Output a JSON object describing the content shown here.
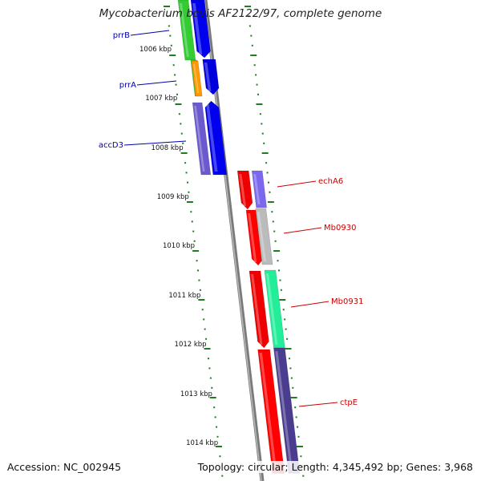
{
  "title": "Mycobacterium bovis AF2122/97, complete genome",
  "footer": {
    "accession": "Accession: NC_002945",
    "summary": "Topology: circular; Length: 4,345,492 bp; Genes: 3,968"
  },
  "ruler": {
    "ticks": [
      "1006 kbp",
      "1007 kbp",
      "1008 kbp",
      "1009 kbp",
      "1010 kbp",
      "1011 kbp",
      "1012 kbp",
      "1013 kbp",
      "1014 kbp"
    ]
  },
  "colors": {
    "backbone": "#8a8a8a",
    "tick": "#1e7d1e",
    "left_label": "#0000aa",
    "right_label": "#cc0000"
  },
  "genes_left": [
    {
      "label": "prrB"
    },
    {
      "label": "prrA"
    },
    {
      "label": "accD3"
    }
  ],
  "genes_right": [
    {
      "label": "echA6"
    },
    {
      "label": "Mb0930"
    },
    {
      "label": "Mb0931"
    },
    {
      "label": "ctpE"
    }
  ]
}
